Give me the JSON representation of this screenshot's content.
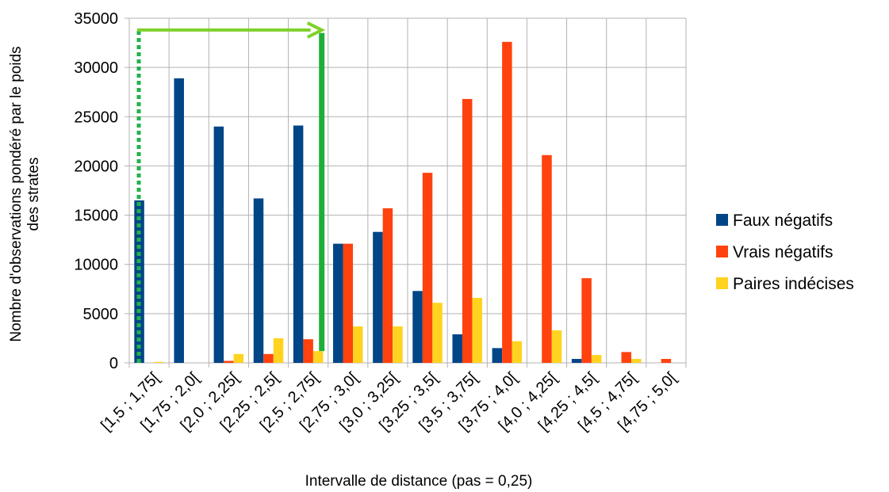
{
  "chart_data": {
    "type": "bar",
    "title": "",
    "xlabel": "Intervalle de distance (pas = 0,25)",
    "ylabel_lines": [
      "Nombre d'observations pondéré par le poids",
      "des strates"
    ],
    "ylim": [
      0,
      35000
    ],
    "yticks": [
      0,
      5000,
      10000,
      15000,
      20000,
      25000,
      30000,
      35000
    ],
    "yticks_labels": [
      "0",
      "5000",
      "10000",
      "15000",
      "20000",
      "25000",
      "30000",
      "35000"
    ],
    "grid": true,
    "legend_position": "right",
    "categories": [
      "[1,5 ; 1,75[",
      "[1,75 ; 2,0[",
      "[2,0 ; 2,25[",
      "[2,25 ; 2,5[",
      "[2,5 ; 2,75[",
      "[2,75 ; 3,0[",
      "[3,0 ; 3,25[",
      "[3,25 ; 3,5[",
      "[3,5 ; 3,75[",
      "[3,75 ; 4,0[",
      "[4,0 ; 4,25[",
      "[4,25 ; 4,5[",
      "[4,5 ; 4,75[",
      "[4,75 ; 5,0["
    ],
    "series": [
      {
        "name": "Faux négatifs",
        "color": "#004586",
        "values": [
          16500,
          28900,
          24000,
          16700,
          24100,
          12100,
          13300,
          7300,
          2900,
          1500,
          0,
          400,
          0,
          0
        ]
      },
      {
        "name": "Vrais négatifs",
        "color": "#ff420e",
        "values": [
          0,
          0,
          200,
          900,
          2400,
          12100,
          15700,
          19300,
          26800,
          32600,
          21100,
          8600,
          1100,
          400
        ]
      },
      {
        "name": "Paires indécises",
        "color": "#ffd320",
        "values": [
          100,
          0,
          900,
          2500,
          1200,
          3700,
          3700,
          6100,
          6600,
          2200,
          3300,
          800,
          400,
          0
        ]
      }
    ],
    "annotations": [
      {
        "type": "dotted-vertical-line",
        "color": "#22b24a",
        "x_category_index": 0,
        "from_value": 0,
        "to_value": 33800
      },
      {
        "type": "arrow",
        "color": "#7fd12a",
        "from_category_index": 0,
        "to_category_index": 4,
        "at_value": 33800
      },
      {
        "type": "solid-vertical-bar",
        "color": "#1fae3a",
        "x_category_index": 4,
        "from_value": 1200,
        "to_value": 33500
      }
    ]
  }
}
